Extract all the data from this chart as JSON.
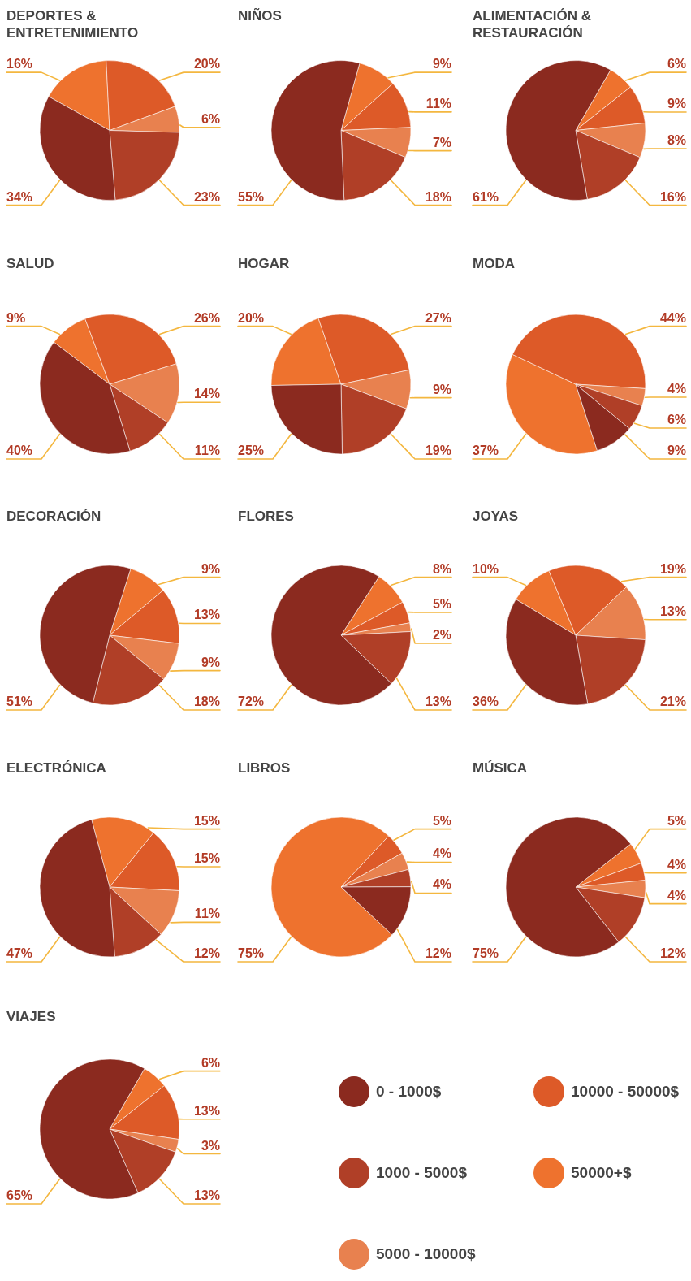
{
  "chart_data": {
    "type": "pie",
    "categories": [
      "0 - 1000$",
      "1000 - 5000$",
      "5000 - 10000$",
      "10000 - 50000$",
      "50000+$"
    ],
    "colors": [
      "#8b2a1f",
      "#b03f27",
      "#e8814f",
      "#dd5a28",
      "#ee722e"
    ],
    "legend": "bottom right",
    "series": [
      {
        "name": "DEPORTES & ENTRETENIMIENTO",
        "values": [
          34,
          23,
          6,
          20,
          16
        ],
        "value_labels": [
          "34%",
          "23%",
          "6%",
          "20%",
          "16%"
        ]
      },
      {
        "name": "NIÑOS",
        "values": [
          55,
          18,
          7,
          11,
          9
        ],
        "value_labels": [
          "55%",
          "18%",
          "7%",
          "11%",
          "9%"
        ]
      },
      {
        "name": "ALIMENTACIÓN & RESTAURACIÓN",
        "values": [
          61,
          16,
          8,
          9,
          6
        ],
        "value_labels": [
          "61%",
          "16%",
          "8%",
          "9%",
          "6%"
        ]
      },
      {
        "name": "SALUD",
        "values": [
          40,
          11,
          14,
          26,
          9
        ],
        "value_labels": [
          "40%",
          "11%",
          "14%",
          "26%",
          "9%"
        ]
      },
      {
        "name": "HOGAR",
        "values": [
          25,
          19,
          9,
          27,
          20
        ],
        "value_labels": [
          "25%",
          "19%",
          "9%",
          "27%",
          "20%"
        ]
      },
      {
        "name": "MODA",
        "values": [
          9,
          6,
          4,
          44,
          37
        ],
        "value_labels": [
          "9%",
          "6%",
          "4%",
          "44%",
          "37%"
        ]
      },
      {
        "name": "DECORACIÓN",
        "values": [
          51,
          18,
          9,
          13,
          9
        ],
        "value_labels": [
          "51%",
          "18%",
          "9%",
          "13%",
          "9%"
        ]
      },
      {
        "name": "FLORES",
        "values": [
          72,
          13,
          2,
          5,
          8
        ],
        "value_labels": [
          "72%",
          "13%",
          "2%",
          "5%",
          "8%"
        ]
      },
      {
        "name": "JOYAS",
        "values": [
          36,
          21,
          13,
          19,
          10
        ],
        "value_labels": [
          "36%",
          "21%",
          "13%",
          "19%",
          "10%"
        ]
      },
      {
        "name": "ELECTRÓNICA",
        "values": [
          47,
          12,
          11,
          15,
          15
        ],
        "value_labels": [
          "47%",
          "12%",
          "11%",
          "15%",
          "15%"
        ]
      },
      {
        "name": "LIBROS",
        "values": [
          12,
          4,
          4,
          5,
          75
        ],
        "value_labels": [
          "12%",
          "4%",
          "4%",
          "5%",
          "75%"
        ]
      },
      {
        "name": "MÚSICA",
        "values": [
          75,
          12,
          4,
          4,
          5
        ],
        "value_labels": [
          "75%",
          "12%",
          "4%",
          "4%",
          "5%"
        ]
      },
      {
        "name": "VIAJES",
        "values": [
          65,
          13,
          3,
          13,
          6
        ],
        "value_labels": [
          "65%",
          "13%",
          "3%",
          "13%",
          "6%"
        ]
      }
    ]
  }
}
